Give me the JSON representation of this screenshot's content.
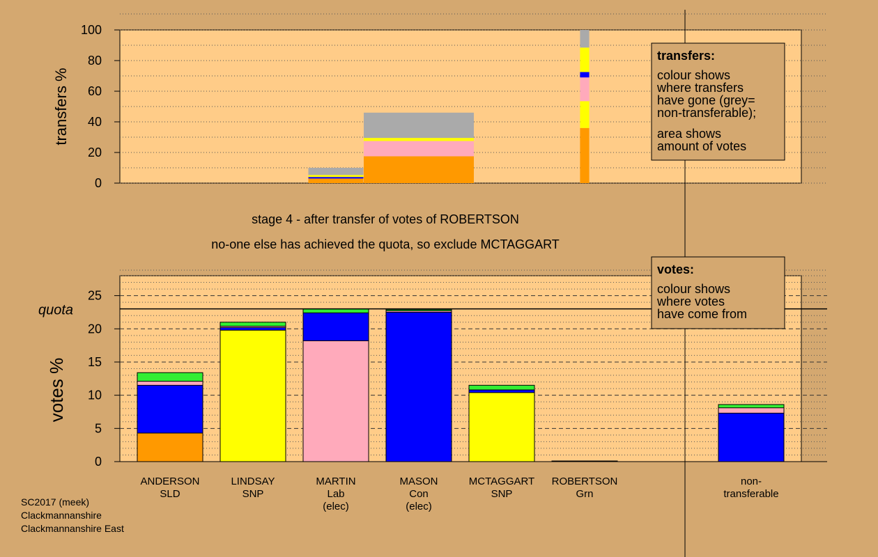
{
  "chart_data": [
    {
      "type": "bar",
      "stacked": true,
      "ylabel": "transfers %",
      "ylim": [
        0,
        100
      ],
      "yticks": [
        "0",
        "20",
        "40",
        "60",
        "80",
        "100"
      ],
      "grid": "dotted",
      "bars": [
        {
          "slot": "MARTIN",
          "width_votes": 0.6,
          "segments": [
            {
              "color": "#ff9900",
              "from": 0,
              "to": 3
            },
            {
              "color": "#0000ff",
              "from": 3,
              "to": 4
            },
            {
              "color": "#ffff00",
              "from": 4,
              "to": 5.3
            },
            {
              "color": "#aaaaaa",
              "from": 5.3,
              "to": 10
            }
          ]
        },
        {
          "slot": "MASON",
          "width_votes": 1.2,
          "segments": [
            {
              "color": "#ff9900",
              "from": 0,
              "to": 17.5
            },
            {
              "color": "#ffaabb",
              "from": 17.5,
              "to": 27.5
            },
            {
              "color": "#ffff00",
              "from": 27.5,
              "to": 29.5
            },
            {
              "color": "#aaaaaa",
              "from": 29.5,
              "to": 46
            }
          ]
        },
        {
          "slot": "ROBERTSON",
          "width_votes": 0.1,
          "segments": [
            {
              "color": "#ff9900",
              "from": 0,
              "to": 36
            },
            {
              "color": "#ffff00",
              "from": 36,
              "to": 53.5
            },
            {
              "color": "#ffaabb",
              "from": 53.5,
              "to": 69
            },
            {
              "color": "#0000ff",
              "from": 69,
              "to": 72.5
            },
            {
              "color": "#ffff00",
              "from": 72.5,
              "to": 88.5
            },
            {
              "color": "#aaaaaa",
              "from": 88.5,
              "to": 100
            }
          ]
        }
      ],
      "legend": {
        "title": "transfers:",
        "lines1": [
          "colour shows",
          "where transfers",
          "have gone (grey=",
          "non-transferable);"
        ],
        "lines2": [
          "area shows",
          "amount of votes"
        ]
      }
    },
    {
      "type": "bar",
      "stacked": true,
      "ylabel": "votes %",
      "ylim": [
        0,
        28
      ],
      "yticks": [
        "0",
        "5",
        "10",
        "15",
        "20",
        "25"
      ],
      "quota": 23,
      "quota_label": "quota",
      "categories": [
        {
          "lines": [
            "ANDERSON",
            "SLD"
          ]
        },
        {
          "lines": [
            "LINDSAY",
            "SNP"
          ]
        },
        {
          "lines": [
            "MARTIN",
            "Lab",
            "(elec)"
          ]
        },
        {
          "lines": [
            "MASON",
            "Con",
            "(elec)"
          ]
        },
        {
          "lines": [
            "MCTAGGART",
            "SNP"
          ]
        },
        {
          "lines": [
            "ROBERTSON",
            "Grn"
          ]
        },
        {
          "lines": [
            "non-",
            "transferable"
          ]
        }
      ],
      "stacks": [
        [
          {
            "color": "#ff9900",
            "v": 4.3
          },
          {
            "color": "#0000ff",
            "v": 7.2
          },
          {
            "color": "#ffaabb",
            "v": 0.6
          },
          {
            "color": "#33ee33",
            "v": 1.3
          }
        ],
        [
          {
            "color": "#ffff00",
            "v": 19.8
          },
          {
            "color": "#0000ff",
            "v": 0.4
          },
          {
            "color": "#ffaabb",
            "v": 0.2
          },
          {
            "color": "#33ee33",
            "v": 0.6
          }
        ],
        [
          {
            "color": "#ffaabb",
            "v": 18.2
          },
          {
            "color": "#0000ff",
            "v": 4.2
          },
          {
            "color": "#33ee33",
            "v": 0.6
          }
        ],
        [
          {
            "color": "#0000ff",
            "v": 22.5
          },
          {
            "color": "#ffaabb",
            "v": 0.2
          },
          {
            "color": "#33ee33",
            "v": 0.2
          }
        ],
        [
          {
            "color": "#ffff00",
            "v": 10.4
          },
          {
            "color": "#0000ff",
            "v": 0.4
          },
          {
            "color": "#33ee33",
            "v": 0.7
          }
        ],
        [
          {
            "color": "#33ee33",
            "v": 0.1
          }
        ],
        [
          {
            "color": "#0000ff",
            "v": 7.3
          },
          {
            "color": "#ffaabb",
            "v": 0.8
          },
          {
            "color": "#33ee33",
            "v": 0.5
          }
        ]
      ],
      "legend": {
        "title": "votes:",
        "lines": [
          "colour shows",
          "where votes",
          "have come from"
        ]
      }
    }
  ],
  "stage_text": "stage 4 - after transfer of votes of ROBERTSON",
  "status_text": "no-one else has achieved the quota, so exclude MCTAGGART",
  "footer": [
    "SC2017 (meek)",
    "Clackmannanshire",
    "Clackmannanshire East"
  ],
  "colors": {
    "page": "#d4a870",
    "plot_bg": "#ffcc88"
  }
}
